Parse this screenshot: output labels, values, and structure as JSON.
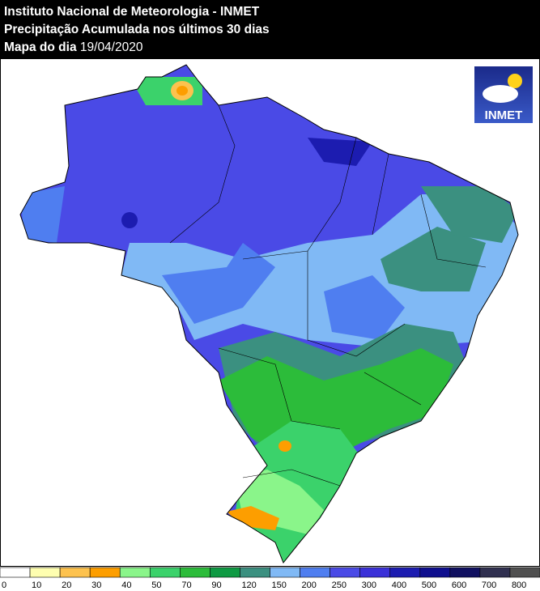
{
  "header": {
    "title": "Instituto Nacional de Meteorologia - INMET",
    "subtitle": "Precipitação Acumulada nos últimos 30 dias",
    "date_prefix": "Mapa do dia",
    "date": "19/04/2020"
  },
  "logo": {
    "text": "INMET"
  },
  "legend": {
    "labels": [
      0,
      10,
      20,
      30,
      40,
      50,
      70,
      90,
      120,
      150,
      200,
      250,
      300,
      400,
      500,
      600,
      700,
      800
    ],
    "colors": [
      "#ffffff",
      "#fefeb0",
      "#fdc24e",
      "#fd9e00",
      "#8af58a",
      "#3bd26b",
      "#2cbc3a",
      "#0e9a43",
      "#3b9080",
      "#80b9f5",
      "#4f7ef0",
      "#4a4ae6",
      "#3a30d8",
      "#1c1cb0",
      "#0e0e8e",
      "#101060",
      "#303050",
      "#505050"
    ]
  }
}
